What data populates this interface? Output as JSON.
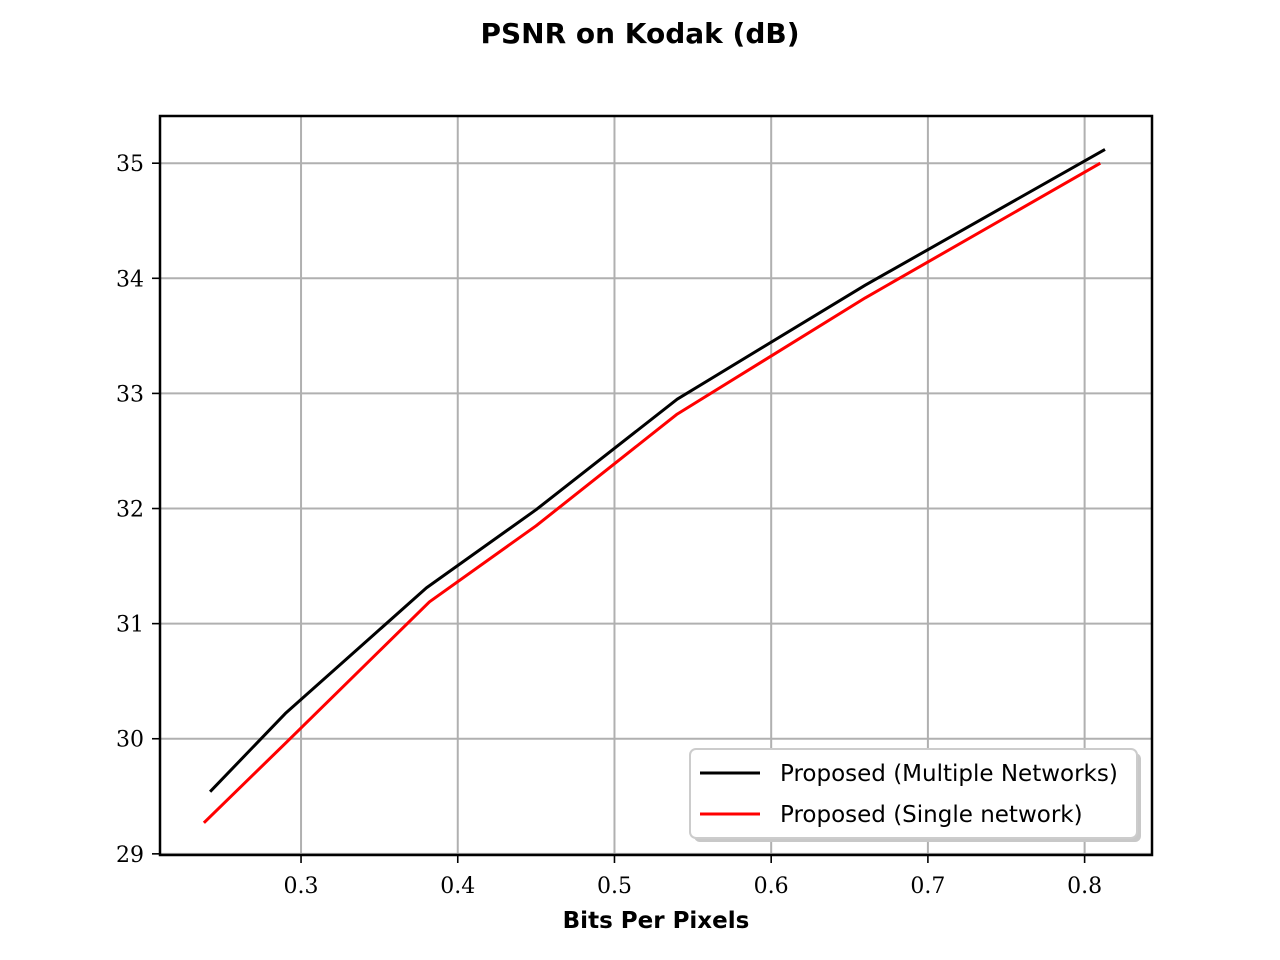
{
  "chart_data": {
    "type": "line",
    "title": "PSNR on Kodak (dB)",
    "xlabel": "Bits Per Pixels",
    "ylabel": "",
    "xlim": [
      0.21,
      0.843
    ],
    "ylim": [
      28.99,
      35.41
    ],
    "xticks": [
      0.3,
      0.4,
      0.5,
      0.6,
      0.7,
      0.8
    ],
    "xtick_labels": [
      "0.3",
      "0.4",
      "0.5",
      "0.6",
      "0.7",
      "0.8"
    ],
    "yticks": [
      29,
      30,
      31,
      32,
      33,
      34,
      35
    ],
    "ytick_labels": [
      "29",
      "30",
      "31",
      "32",
      "33",
      "34",
      "35"
    ],
    "grid": true,
    "legend_position": "bottom-right",
    "series": [
      {
        "name": "Proposed (Multiple Networks)",
        "color": "#000000",
        "x": [
          0.242,
          0.29,
          0.38,
          0.45,
          0.54,
          0.66,
          0.813
        ],
        "y": [
          29.54,
          30.22,
          31.31,
          31.99,
          32.95,
          33.94,
          35.12
        ]
      },
      {
        "name": "Proposed (Single network)",
        "color": "#ff0000",
        "x": [
          0.238,
          0.29,
          0.382,
          0.45,
          0.54,
          0.66,
          0.81
        ],
        "y": [
          29.27,
          29.96,
          31.19,
          31.85,
          32.82,
          33.83,
          35.0
        ]
      }
    ]
  }
}
